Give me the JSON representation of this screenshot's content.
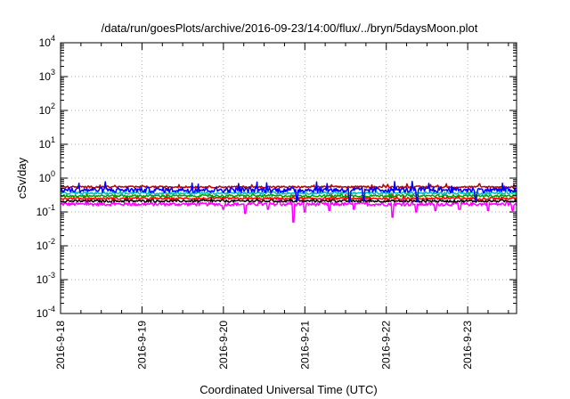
{
  "chart_data": {
    "type": "line",
    "title": "/data/run/goesPlots/archive/2016-09-23/14:00/flux/../bryn/5daysMoon.plot",
    "xlabel": "Coordinated Universal Time (UTC)",
    "ylabel": "cSv/day",
    "yscale": "log",
    "ylim": [
      0.0001,
      10000
    ],
    "xlim_days": [
      0,
      5.6
    ],
    "grid": true,
    "x_tick_labels": [
      "2016-9-18",
      "2016-9-19",
      "2016-9-20",
      "2016-9-21",
      "2016-9-22",
      "2016-9-23"
    ],
    "y_tick_labels": [
      {
        "base": "10",
        "exp": "4"
      },
      {
        "base": "10",
        "exp": "3"
      },
      {
        "base": "10",
        "exp": "2"
      },
      {
        "base": "10",
        "exp": "1"
      },
      {
        "base": "10",
        "exp": "0"
      },
      {
        "base": "10",
        "exp": "-1"
      },
      {
        "base": "10",
        "exp": "-2"
      },
      {
        "base": "10",
        "exp": "-3"
      },
      {
        "base": "10",
        "exp": "-4"
      }
    ],
    "series": [
      {
        "color": "#ff00ff",
        "base": 0.17,
        "spread": 0.22,
        "dips": [
          [
            2.0,
            0.12
          ],
          [
            2.27,
            0.09
          ],
          [
            2.55,
            0.12
          ],
          [
            2.86,
            0.05
          ],
          [
            3.0,
            0.1
          ],
          [
            3.3,
            0.11
          ],
          [
            3.6,
            0.12
          ],
          [
            4.08,
            0.07
          ],
          [
            4.37,
            0.1
          ],
          [
            4.6,
            0.11
          ],
          [
            4.9,
            0.12
          ],
          [
            5.25,
            0.11
          ],
          [
            5.55,
            0.11
          ]
        ]
      },
      {
        "color": "#000000",
        "base": 0.21,
        "spread": 0.15,
        "dips": []
      },
      {
        "color": "#ff0000",
        "base": 0.25,
        "spread": 0.15,
        "dips": []
      },
      {
        "color": "#00a000",
        "base": 0.3,
        "spread": 0.15,
        "dips": []
      },
      {
        "color": "#00c0c0",
        "base": 0.36,
        "spread": 0.15,
        "dips": []
      },
      {
        "color": "#c00000",
        "base": 0.55,
        "spread": 0.12,
        "dips": []
      },
      {
        "color": "#0000ff",
        "base": 0.45,
        "spread": 0.35,
        "dips": [
          [
            2.9,
            0.22
          ],
          [
            3.55,
            0.2
          ],
          [
            3.72,
            0.22
          ],
          [
            4.38,
            0.2
          ],
          [
            5.1,
            0.22
          ]
        ]
      }
    ]
  }
}
